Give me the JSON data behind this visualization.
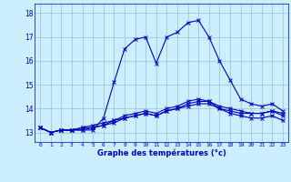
{
  "x": [
    0,
    1,
    2,
    3,
    4,
    5,
    6,
    7,
    8,
    9,
    10,
    11,
    12,
    13,
    14,
    15,
    16,
    17,
    18,
    19,
    20,
    21,
    22,
    23
  ],
  "line1": [
    13.2,
    13.0,
    13.1,
    13.1,
    13.1,
    13.1,
    13.6,
    15.1,
    16.5,
    16.9,
    17.0,
    15.9,
    17.0,
    17.2,
    17.6,
    17.7,
    17.0,
    16.0,
    15.2,
    14.4,
    14.2,
    14.1,
    14.2,
    13.9
  ],
  "line2": [
    13.2,
    13.0,
    13.1,
    13.1,
    13.1,
    13.2,
    13.3,
    13.4,
    13.6,
    13.7,
    13.8,
    13.7,
    13.9,
    14.0,
    14.1,
    14.2,
    14.2,
    14.0,
    13.9,
    13.8,
    13.8,
    13.8,
    13.9,
    13.8
  ],
  "line3": [
    13.2,
    13.0,
    13.1,
    13.1,
    13.2,
    13.2,
    13.3,
    13.5,
    13.6,
    13.7,
    13.8,
    13.7,
    13.9,
    14.0,
    14.2,
    14.3,
    14.3,
    14.1,
    14.0,
    13.9,
    13.8,
    13.8,
    13.9,
    13.7
  ],
  "line4": [
    13.2,
    13.0,
    13.1,
    13.1,
    13.2,
    13.3,
    13.4,
    13.5,
    13.7,
    13.8,
    13.9,
    13.8,
    14.0,
    14.1,
    14.3,
    14.4,
    14.3,
    14.0,
    13.8,
    13.7,
    13.6,
    13.6,
    13.7,
    13.5
  ],
  "line_color": "#0000bb",
  "bg_color": "#cceeff",
  "grid_color": "#99cccc",
  "ylabel_values": [
    13,
    14,
    15,
    16,
    17,
    18
  ],
  "xlabel": "Graphe des températures (°c)",
  "xlim": [
    -0.5,
    23.5
  ],
  "ylim": [
    12.6,
    18.4
  ],
  "tick_labels": [
    "0",
    "1",
    "2",
    "3",
    "4",
    "5",
    "6",
    "7",
    "8",
    "9",
    "10",
    "11",
    "12",
    "13",
    "14",
    "15",
    "16",
    "17",
    "18",
    "19",
    "20",
    "21",
    "22",
    "23"
  ]
}
